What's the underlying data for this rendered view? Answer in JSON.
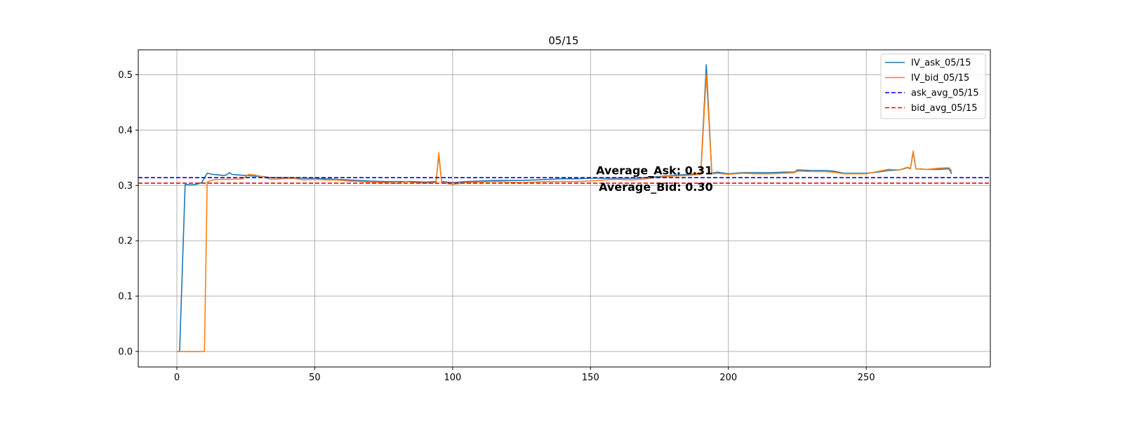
{
  "chart_data": {
    "type": "line",
    "title": "05/15",
    "xlabel": "",
    "ylabel": "",
    "xlim": [
      -14,
      295
    ],
    "ylim": [
      -0.028,
      0.545
    ],
    "xticks": [
      0,
      50,
      100,
      150,
      200,
      250
    ],
    "yticks": [
      0.0,
      0.1,
      0.2,
      0.3,
      0.4,
      0.5
    ],
    "xtick_labels": [
      "0",
      "50",
      "100",
      "150",
      "200",
      "250"
    ],
    "ytick_labels": [
      "0.0",
      "0.1",
      "0.2",
      "0.3",
      "0.4",
      "0.5"
    ],
    "grid": true,
    "legend_position": "top-right",
    "series": [
      {
        "name": "IV_ask_05/15",
        "color": "#1f77b4",
        "style": "solid",
        "points": [
          [
            0,
            0.0
          ],
          [
            1,
            0.0
          ],
          [
            3,
            0.302
          ],
          [
            5,
            0.301
          ],
          [
            7,
            0.302
          ],
          [
            9,
            0.305
          ],
          [
            11,
            0.322
          ],
          [
            13,
            0.32
          ],
          [
            15,
            0.319
          ],
          [
            17,
            0.318
          ],
          [
            18,
            0.319
          ],
          [
            19,
            0.323
          ],
          [
            20,
            0.32
          ],
          [
            22,
            0.319
          ],
          [
            25,
            0.318
          ],
          [
            28,
            0.317
          ],
          [
            31,
            0.316
          ],
          [
            34,
            0.314
          ],
          [
            38,
            0.314
          ],
          [
            42,
            0.314
          ],
          [
            46,
            0.313
          ],
          [
            50,
            0.313
          ],
          [
            54,
            0.312
          ],
          [
            58,
            0.311
          ],
          [
            62,
            0.31
          ],
          [
            66,
            0.309
          ],
          [
            70,
            0.308
          ],
          [
            75,
            0.307
          ],
          [
            80,
            0.307
          ],
          [
            85,
            0.307
          ],
          [
            90,
            0.306
          ],
          [
            94,
            0.307
          ],
          [
            95,
            0.355
          ],
          [
            96,
            0.307
          ],
          [
            100,
            0.305
          ],
          [
            105,
            0.307
          ],
          [
            110,
            0.308
          ],
          [
            115,
            0.309
          ],
          [
            120,
            0.309
          ],
          [
            125,
            0.309
          ],
          [
            130,
            0.31
          ],
          [
            135,
            0.311
          ],
          [
            140,
            0.312
          ],
          [
            145,
            0.312
          ],
          [
            150,
            0.313
          ],
          [
            155,
            0.313
          ],
          [
            160,
            0.313
          ],
          [
            165,
            0.313
          ],
          [
            170,
            0.314
          ],
          [
            175,
            0.316
          ],
          [
            180,
            0.318
          ],
          [
            185,
            0.32
          ],
          [
            190,
            0.322
          ],
          [
            192,
            0.518
          ],
          [
            194,
            0.322
          ],
          [
            196,
            0.324
          ],
          [
            200,
            0.321
          ],
          [
            205,
            0.323
          ],
          [
            210,
            0.323
          ],
          [
            215,
            0.323
          ],
          [
            220,
            0.324
          ],
          [
            224,
            0.324
          ],
          [
            225,
            0.328
          ],
          [
            230,
            0.327
          ],
          [
            235,
            0.327
          ],
          [
            238,
            0.326
          ],
          [
            242,
            0.322
          ],
          [
            246,
            0.322
          ],
          [
            250,
            0.322
          ],
          [
            254,
            0.324
          ],
          [
            258,
            0.327
          ],
          [
            262,
            0.328
          ],
          [
            265,
            0.332
          ],
          [
            266,
            0.33
          ],
          [
            267,
            0.36
          ],
          [
            268,
            0.33
          ],
          [
            272,
            0.329
          ],
          [
            276,
            0.329
          ],
          [
            280,
            0.33
          ],
          [
            281,
            0.321
          ]
        ]
      },
      {
        "name": "IV_bid_05/15",
        "color": "#ff7f0e",
        "style": "solid",
        "points": [
          [
            0,
            0.0
          ],
          [
            5,
            0.0
          ],
          [
            10,
            0.0
          ],
          [
            11,
            0.306
          ],
          [
            13,
            0.31
          ],
          [
            16,
            0.311
          ],
          [
            20,
            0.311
          ],
          [
            24,
            0.312
          ],
          [
            26,
            0.32
          ],
          [
            28,
            0.319
          ],
          [
            31,
            0.316
          ],
          [
            34,
            0.311
          ],
          [
            38,
            0.312
          ],
          [
            42,
            0.313
          ],
          [
            46,
            0.31
          ],
          [
            50,
            0.311
          ],
          [
            54,
            0.31
          ],
          [
            58,
            0.31
          ],
          [
            62,
            0.308
          ],
          [
            66,
            0.307
          ],
          [
            70,
            0.306
          ],
          [
            75,
            0.305
          ],
          [
            80,
            0.304
          ],
          [
            83,
            0.307
          ],
          [
            86,
            0.305
          ],
          [
            90,
            0.304
          ],
          [
            94,
            0.305
          ],
          [
            95,
            0.359
          ],
          [
            96,
            0.305
          ],
          [
            100,
            0.302
          ],
          [
            105,
            0.305
          ],
          [
            110,
            0.306
          ],
          [
            115,
            0.307
          ],
          [
            120,
            0.306
          ],
          [
            125,
            0.305
          ],
          [
            130,
            0.306
          ],
          [
            135,
            0.307
          ],
          [
            140,
            0.307
          ],
          [
            145,
            0.307
          ],
          [
            150,
            0.308
          ],
          [
            155,
            0.31
          ],
          [
            160,
            0.311
          ],
          [
            165,
            0.31
          ],
          [
            170,
            0.312
          ],
          [
            175,
            0.315
          ],
          [
            180,
            0.317
          ],
          [
            185,
            0.318
          ],
          [
            190,
            0.32
          ],
          [
            192,
            0.5
          ],
          [
            194,
            0.321
          ],
          [
            196,
            0.322
          ],
          [
            200,
            0.32
          ],
          [
            205,
            0.322
          ],
          [
            210,
            0.321
          ],
          [
            215,
            0.321
          ],
          [
            220,
            0.322
          ],
          [
            224,
            0.323
          ],
          [
            225,
            0.326
          ],
          [
            230,
            0.325
          ],
          [
            235,
            0.325
          ],
          [
            238,
            0.324
          ],
          [
            242,
            0.321
          ],
          [
            246,
            0.321
          ],
          [
            250,
            0.321
          ],
          [
            254,
            0.325
          ],
          [
            258,
            0.329
          ],
          [
            262,
            0.328
          ],
          [
            265,
            0.333
          ],
          [
            266,
            0.33
          ],
          [
            267,
            0.362
          ],
          [
            268,
            0.33
          ],
          [
            272,
            0.329
          ],
          [
            276,
            0.331
          ],
          [
            280,
            0.332
          ],
          [
            281,
            0.326
          ]
        ]
      },
      {
        "name": "ask_avg_05/15",
        "color": "#0000ff",
        "style": "dashed",
        "y": 0.314
      },
      {
        "name": "bid_avg_05/15",
        "color": "#ff0000",
        "style": "dashed",
        "y": 0.304
      }
    ],
    "annotations": [
      {
        "name": "ask-annotation",
        "text": "Average_Ask: 0.31",
        "x": 152,
        "y": 0.32
      },
      {
        "name": "bid-annotation",
        "text": "Average_Bid: 0.30",
        "x": 153,
        "y": 0.29
      }
    ]
  }
}
